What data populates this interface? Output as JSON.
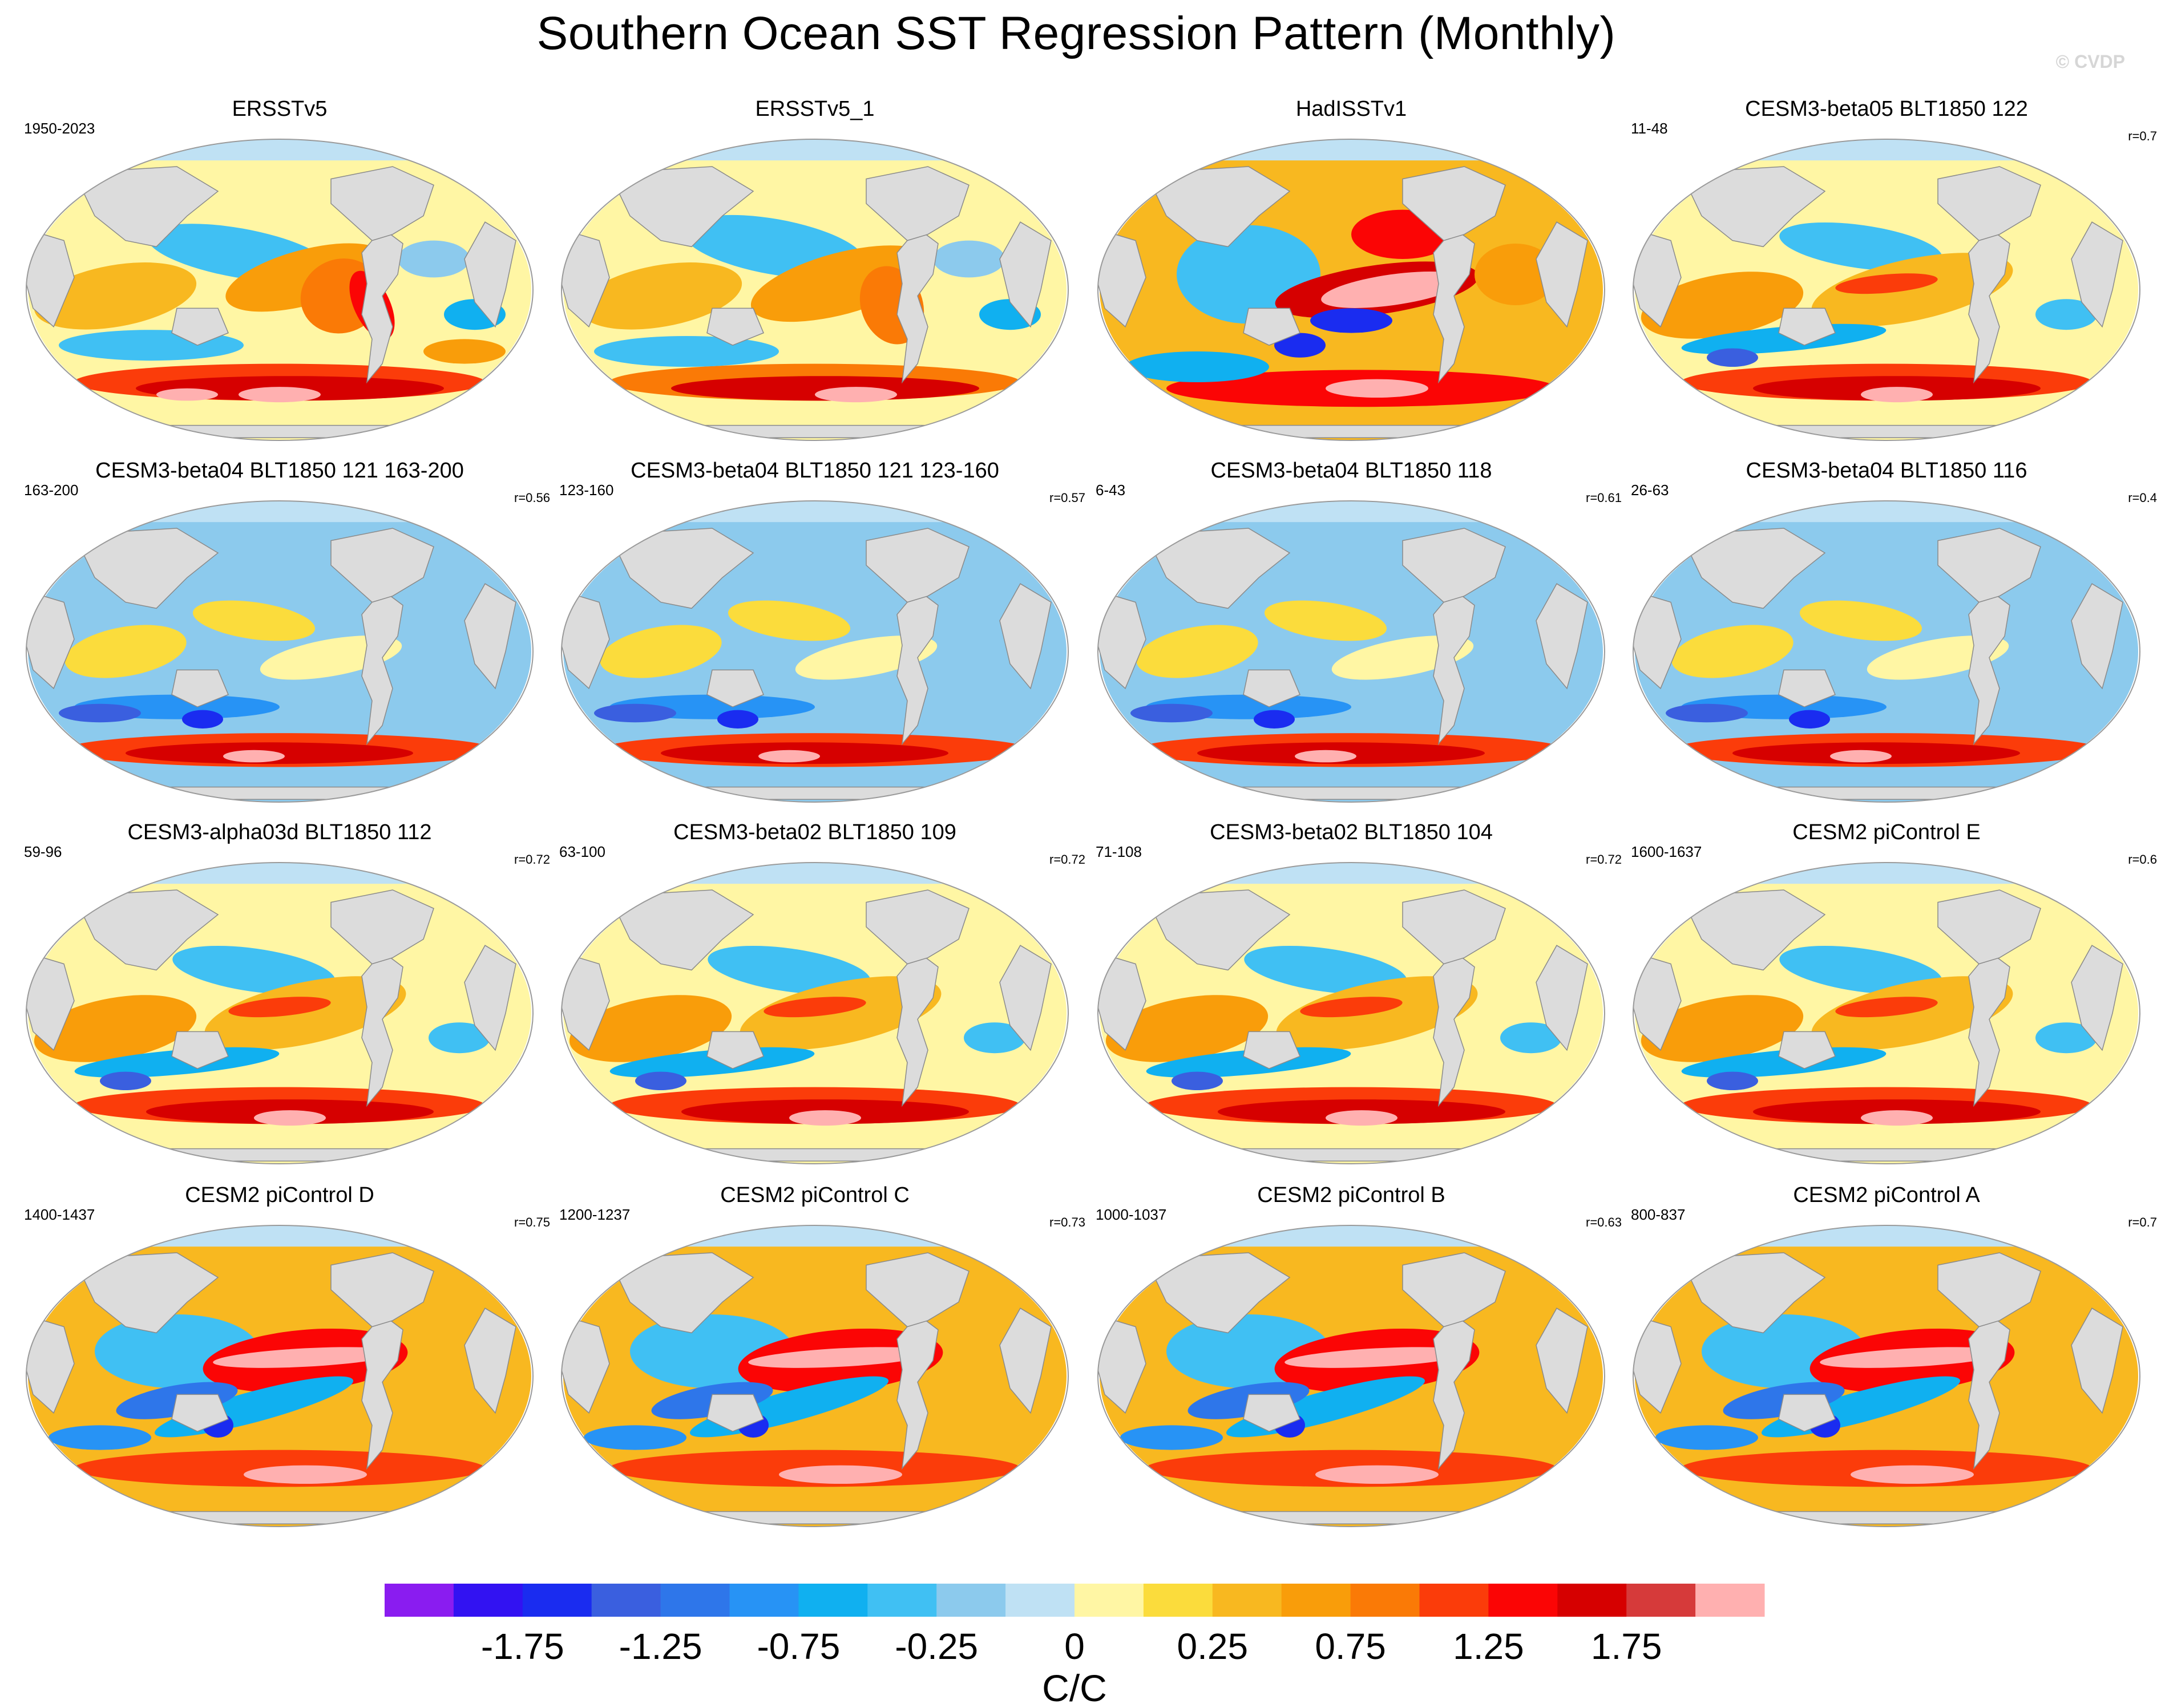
{
  "title": "Southern Ocean SST Regression Pattern (Monthly)",
  "credit": "© CVDP",
  "chart_data": {
    "type": "heatmap",
    "projection": "Robinson (Pacific-centred global maps)",
    "variable": "SST regression pattern",
    "units": "C/C",
    "panels": [
      {
        "name": "ERSSTv5",
        "years": "1950-2023",
        "r": "",
        "pattern": "obs_a"
      },
      {
        "name": "ERSSTv5_1",
        "years": "",
        "r": "",
        "pattern": "obs_b"
      },
      {
        "name": "HadISSTv1",
        "years": "",
        "r": "",
        "pattern": "had"
      },
      {
        "name": "CESM3-beta05 BLT1850 122",
        "years": "11-48",
        "r": "r=0.7",
        "pattern": "warm"
      },
      {
        "name": "CESM3-beta04 BLT1850 121 163-200",
        "years": "163-200",
        "r": "r=0.56",
        "pattern": "cool"
      },
      {
        "name": "CESM3-beta04 BLT1850 121 123-160",
        "years": "123-160",
        "r": "r=0.57",
        "pattern": "cool"
      },
      {
        "name": "CESM3-beta04 BLT1850 118",
        "years": "6-43",
        "r": "r=0.61",
        "pattern": "cool"
      },
      {
        "name": "CESM3-beta04 BLT1850 116",
        "years": "26-63",
        "r": "r=0.4",
        "pattern": "cool"
      },
      {
        "name": "CESM3-alpha03d BLT1850 112",
        "years": "59-96",
        "r": "r=0.72",
        "pattern": "warm"
      },
      {
        "name": "CESM3-beta02 BLT1850 109",
        "years": "63-100",
        "r": "r=0.72",
        "pattern": "warm"
      },
      {
        "name": "CESM3-beta02 BLT1850 104",
        "years": "71-108",
        "r": "r=0.72",
        "pattern": "warm"
      },
      {
        "name": "CESM2 piControl E",
        "years": "1600-1637",
        "r": "r=0.6",
        "pattern": "warm"
      },
      {
        "name": "CESM2 piControl D",
        "years": "1400-1437",
        "r": "r=0.75",
        "pattern": "enso"
      },
      {
        "name": "CESM2 piControl C",
        "years": "1200-1237",
        "r": "r=0.73",
        "pattern": "enso"
      },
      {
        "name": "CESM2 piControl B",
        "years": "1000-1037",
        "r": "r=0.63",
        "pattern": "enso"
      },
      {
        "name": "CESM2 piControl A",
        "years": "800-837",
        "r": "r=0.7",
        "pattern": "enso"
      }
    ],
    "colorbar": {
      "colors": [
        "#8a1cf0",
        "#3212f2",
        "#1a2cf0",
        "#3a5fdf",
        "#2e76ea",
        "#2793f5",
        "#10b0f0",
        "#40c0f3",
        "#8ccaed",
        "#bfe1f4",
        "#fff6a4",
        "#fbdc3c",
        "#f8b820",
        "#f99d0a",
        "#fa7a06",
        "#fb3c0a",
        "#fb0505",
        "#d60000",
        "#d63a3a",
        "#ffb0b0"
      ],
      "tick_labels": [
        "-1.75",
        "-1.25",
        "-0.75",
        "-0.25",
        "0",
        "0.25",
        "0.75",
        "1.25",
        "1.75"
      ],
      "units": "C/C"
    }
  }
}
